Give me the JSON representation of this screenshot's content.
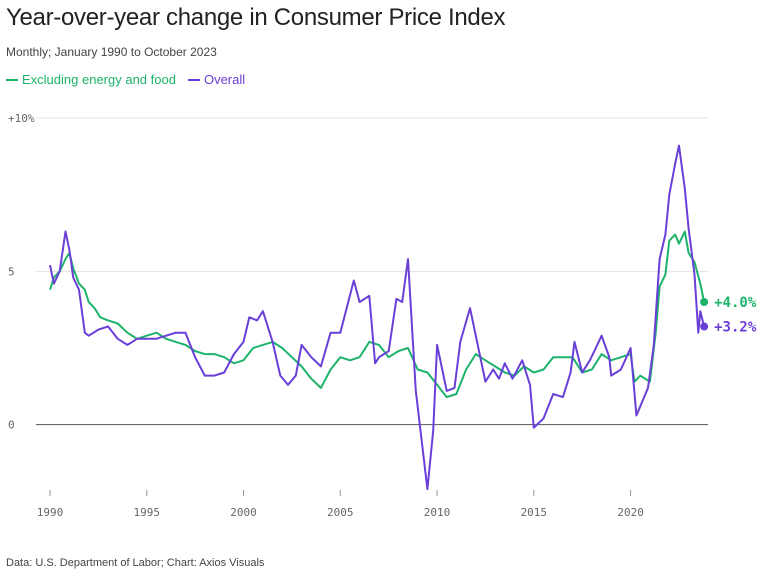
{
  "header": {
    "title": "Year-over-year change in Consumer Price Index",
    "subtitle": "Monthly; January 1990 to October 2023"
  },
  "legend": [
    {
      "label": "Excluding energy and food",
      "color": "#1db36b"
    },
    {
      "label": "Overall",
      "color": "#6a3fd8"
    }
  ],
  "footer": {
    "source": "Data: U.S. Department of Labor; Chart: Axios Visuals"
  },
  "chart_data": {
    "type": "line",
    "ylim": [
      -2,
      10
    ],
    "xlim": [
      1990,
      2024
    ],
    "y_ticks": [
      {
        "value": 10,
        "label": "+10%"
      },
      {
        "value": 5,
        "label": "5"
      },
      {
        "value": 0,
        "label": "0"
      }
    ],
    "x_ticks": [
      {
        "value": 1990,
        "label": "1990"
      },
      {
        "value": 1995,
        "label": "1995"
      },
      {
        "value": 2000,
        "label": "2000"
      },
      {
        "value": 2005,
        "label": "2005"
      },
      {
        "value": 2010,
        "label": "2010"
      },
      {
        "value": 2015,
        "label": "2015"
      },
      {
        "value": 2020,
        "label": "2020"
      }
    ],
    "grid": "horizontal",
    "series": [
      {
        "name": "Excluding energy and food",
        "color": "#1db36b",
        "end_label": "+4.0%",
        "points": [
          [
            1990.0,
            4.4
          ],
          [
            1990.2,
            4.8
          ],
          [
            1990.5,
            5.0
          ],
          [
            1990.8,
            5.4
          ],
          [
            1991.0,
            5.6
          ],
          [
            1991.2,
            5.1
          ],
          [
            1991.5,
            4.6
          ],
          [
            1991.8,
            4.4
          ],
          [
            1992.0,
            4.0
          ],
          [
            1992.3,
            3.8
          ],
          [
            1992.6,
            3.5
          ],
          [
            1993.0,
            3.4
          ],
          [
            1993.5,
            3.3
          ],
          [
            1994.0,
            3.0
          ],
          [
            1994.5,
            2.8
          ],
          [
            1995.0,
            2.9
          ],
          [
            1995.5,
            3.0
          ],
          [
            1996.0,
            2.8
          ],
          [
            1996.5,
            2.7
          ],
          [
            1997.0,
            2.6
          ],
          [
            1997.5,
            2.4
          ],
          [
            1998.0,
            2.3
          ],
          [
            1998.5,
            2.3
          ],
          [
            1999.0,
            2.2
          ],
          [
            1999.5,
            2.0
          ],
          [
            2000.0,
            2.1
          ],
          [
            2000.5,
            2.5
          ],
          [
            2001.0,
            2.6
          ],
          [
            2001.5,
            2.7
          ],
          [
            2002.0,
            2.5
          ],
          [
            2002.5,
            2.2
          ],
          [
            2003.0,
            1.9
          ],
          [
            2003.5,
            1.5
          ],
          [
            2004.0,
            1.2
          ],
          [
            2004.5,
            1.8
          ],
          [
            2005.0,
            2.2
          ],
          [
            2005.5,
            2.1
          ],
          [
            2006.0,
            2.2
          ],
          [
            2006.5,
            2.7
          ],
          [
            2007.0,
            2.6
          ],
          [
            2007.5,
            2.2
          ],
          [
            2008.0,
            2.4
          ],
          [
            2008.5,
            2.5
          ],
          [
            2009.0,
            1.8
          ],
          [
            2009.5,
            1.7
          ],
          [
            2010.0,
            1.3
          ],
          [
            2010.5,
            0.9
          ],
          [
            2011.0,
            1.0
          ],
          [
            2011.5,
            1.8
          ],
          [
            2012.0,
            2.3
          ],
          [
            2012.5,
            2.1
          ],
          [
            2013.0,
            1.9
          ],
          [
            2013.5,
            1.7
          ],
          [
            2014.0,
            1.6
          ],
          [
            2014.5,
            1.9
          ],
          [
            2015.0,
            1.7
          ],
          [
            2015.5,
            1.8
          ],
          [
            2016.0,
            2.2
          ],
          [
            2016.5,
            2.2
          ],
          [
            2017.0,
            2.2
          ],
          [
            2017.5,
            1.7
          ],
          [
            2018.0,
            1.8
          ],
          [
            2018.5,
            2.3
          ],
          [
            2019.0,
            2.1
          ],
          [
            2019.5,
            2.2
          ],
          [
            2020.0,
            2.3
          ],
          [
            2020.2,
            1.4
          ],
          [
            2020.5,
            1.6
          ],
          [
            2021.0,
            1.4
          ],
          [
            2021.3,
            3.0
          ],
          [
            2021.5,
            4.5
          ],
          [
            2021.8,
            4.9
          ],
          [
            2022.0,
            6.0
          ],
          [
            2022.3,
            6.2
          ],
          [
            2022.5,
            5.9
          ],
          [
            2022.8,
            6.3
          ],
          [
            2023.0,
            5.6
          ],
          [
            2023.3,
            5.3
          ],
          [
            2023.6,
            4.6
          ],
          [
            2023.8,
            4.0
          ]
        ]
      },
      {
        "name": "Overall",
        "color": "#6a3fd8",
        "end_label": "+3.2%",
        "points": [
          [
            1990.0,
            5.2
          ],
          [
            1990.2,
            4.6
          ],
          [
            1990.5,
            5.0
          ],
          [
            1990.8,
            6.3
          ],
          [
            1991.0,
            5.7
          ],
          [
            1991.2,
            4.8
          ],
          [
            1991.5,
            4.4
          ],
          [
            1991.8,
            3.0
          ],
          [
            1992.0,
            2.9
          ],
          [
            1992.5,
            3.1
          ],
          [
            1993.0,
            3.2
          ],
          [
            1993.5,
            2.8
          ],
          [
            1994.0,
            2.6
          ],
          [
            1994.5,
            2.8
          ],
          [
            1995.0,
            2.8
          ],
          [
            1995.5,
            2.8
          ],
          [
            1996.0,
            2.9
          ],
          [
            1996.5,
            3.0
          ],
          [
            1997.0,
            3.0
          ],
          [
            1997.5,
            2.2
          ],
          [
            1998.0,
            1.6
          ],
          [
            1998.5,
            1.6
          ],
          [
            1999.0,
            1.7
          ],
          [
            1999.5,
            2.3
          ],
          [
            2000.0,
            2.7
          ],
          [
            2000.3,
            3.5
          ],
          [
            2000.7,
            3.4
          ],
          [
            2001.0,
            3.7
          ],
          [
            2001.5,
            2.7
          ],
          [
            2001.9,
            1.6
          ],
          [
            2002.3,
            1.3
          ],
          [
            2002.7,
            1.6
          ],
          [
            2003.0,
            2.6
          ],
          [
            2003.5,
            2.2
          ],
          [
            2004.0,
            1.9
          ],
          [
            2004.5,
            3.0
          ],
          [
            2005.0,
            3.0
          ],
          [
            2005.7,
            4.7
          ],
          [
            2006.0,
            4.0
          ],
          [
            2006.5,
            4.2
          ],
          [
            2006.8,
            2.0
          ],
          [
            2007.0,
            2.2
          ],
          [
            2007.5,
            2.4
          ],
          [
            2007.9,
            4.1
          ],
          [
            2008.2,
            4.0
          ],
          [
            2008.5,
            5.4
          ],
          [
            2008.9,
            1.1
          ],
          [
            2009.2,
            -0.5
          ],
          [
            2009.5,
            -2.1
          ],
          [
            2009.8,
            -0.2
          ],
          [
            2010.0,
            2.6
          ],
          [
            2010.5,
            1.1
          ],
          [
            2010.9,
            1.2
          ],
          [
            2011.2,
            2.7
          ],
          [
            2011.7,
            3.8
          ],
          [
            2012.0,
            2.9
          ],
          [
            2012.5,
            1.4
          ],
          [
            2012.9,
            1.8
          ],
          [
            2013.2,
            1.5
          ],
          [
            2013.5,
            2.0
          ],
          [
            2013.9,
            1.5
          ],
          [
            2014.4,
            2.1
          ],
          [
            2014.8,
            1.3
          ],
          [
            2015.0,
            -0.1
          ],
          [
            2015.5,
            0.2
          ],
          [
            2016.0,
            1.0
          ],
          [
            2016.5,
            0.9
          ],
          [
            2016.9,
            1.7
          ],
          [
            2017.1,
            2.7
          ],
          [
            2017.5,
            1.7
          ],
          [
            2017.9,
            2.1
          ],
          [
            2018.2,
            2.5
          ],
          [
            2018.5,
            2.9
          ],
          [
            2018.9,
            2.2
          ],
          [
            2019.0,
            1.6
          ],
          [
            2019.5,
            1.8
          ],
          [
            2020.0,
            2.5
          ],
          [
            2020.3,
            0.3
          ],
          [
            2020.5,
            0.6
          ],
          [
            2020.9,
            1.2
          ],
          [
            2021.2,
            2.6
          ],
          [
            2021.5,
            5.4
          ],
          [
            2021.8,
            6.2
          ],
          [
            2022.0,
            7.5
          ],
          [
            2022.3,
            8.5
          ],
          [
            2022.5,
            9.1
          ],
          [
            2022.8,
            7.7
          ],
          [
            2023.0,
            6.4
          ],
          [
            2023.3,
            4.9
          ],
          [
            2023.5,
            3.0
          ],
          [
            2023.6,
            3.7
          ],
          [
            2023.8,
            3.2
          ]
        ]
      }
    ]
  }
}
